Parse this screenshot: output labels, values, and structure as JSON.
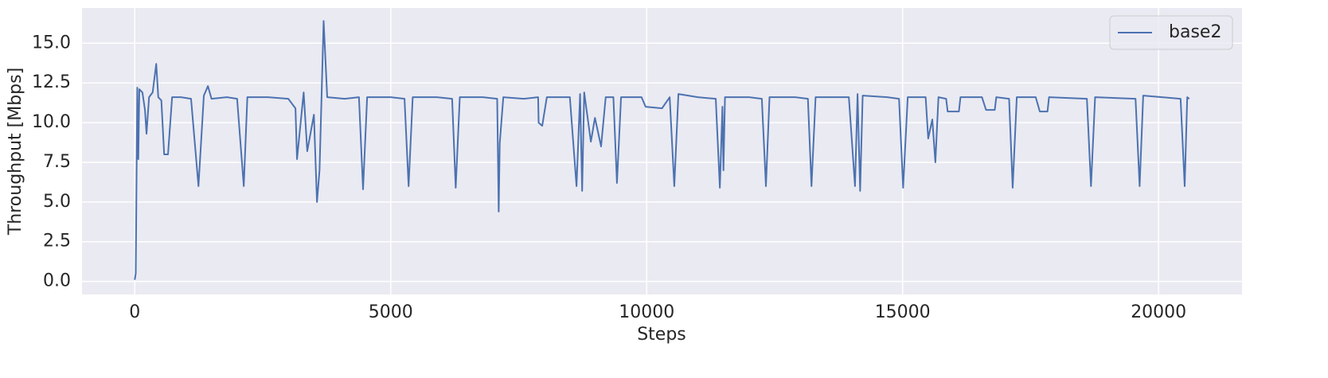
{
  "chart_data": {
    "type": "line",
    "xlabel": "Steps",
    "ylabel": "Throughput [Mbps]",
    "x": [
      0,
      20,
      50,
      70,
      90,
      150,
      200,
      230,
      280,
      350,
      420,
      460,
      520,
      575,
      650,
      730,
      900,
      1100,
      1245,
      1350,
      1430,
      1500,
      1800,
      2000,
      2130,
      2200,
      2600,
      3000,
      3140,
      3170,
      3300,
      3370,
      3500,
      3560,
      3610,
      3690,
      3760,
      4100,
      4380,
      4460,
      4540,
      5000,
      5270,
      5350,
      5430,
      5900,
      6200,
      6270,
      6350,
      6800,
      7080,
      7110,
      7130,
      7200,
      7600,
      7880,
      7890,
      7960,
      8050,
      8500,
      8630,
      8700,
      8740,
      8780,
      8910,
      8990,
      9110,
      9200,
      9350,
      9420,
      9500,
      9900,
      9980,
      10300,
      10450,
      10540,
      10620,
      11000,
      11350,
      11430,
      11480,
      11500,
      11530,
      12000,
      12250,
      12330,
      12400,
      12900,
      13150,
      13220,
      13300,
      13950,
      14070,
      14120,
      14170,
      14220,
      14700,
      14930,
      15010,
      15100,
      15450,
      15500,
      15580,
      15640,
      15700,
      15850,
      15880,
      16100,
      16130,
      16550,
      16630,
      16800,
      16830,
      17080,
      17150,
      17230,
      17600,
      17680,
      17830,
      17860,
      18600,
      18680,
      18760,
      19550,
      19630,
      19700,
      20430,
      20510,
      20560,
      20600
    ],
    "series": [
      {
        "name": "base2",
        "color": "#4c72b0",
        "values": [
          0.1,
          0.5,
          12.2,
          7.7,
          12.1,
          11.9,
          10.8,
          9.3,
          11.6,
          11.9,
          13.7,
          11.6,
          11.4,
          8.0,
          8.0,
          11.6,
          11.6,
          11.5,
          6.0,
          11.7,
          12.3,
          11.5,
          11.6,
          11.5,
          6.0,
          11.6,
          11.6,
          11.5,
          10.9,
          7.7,
          11.9,
          8.2,
          10.5,
          5.0,
          7.0,
          16.4,
          11.6,
          11.5,
          11.6,
          5.8,
          11.6,
          11.6,
          11.5,
          6.0,
          11.6,
          11.6,
          11.5,
          5.9,
          11.6,
          11.6,
          11.5,
          4.4,
          8.7,
          11.6,
          11.5,
          11.6,
          10.0,
          9.8,
          11.6,
          11.6,
          6.0,
          11.8,
          5.7,
          11.9,
          8.8,
          10.3,
          8.5,
          11.6,
          11.6,
          6.2,
          11.6,
          11.6,
          11.0,
          10.9,
          11.6,
          6.0,
          11.8,
          11.6,
          11.5,
          5.9,
          11.0,
          7.0,
          11.6,
          11.6,
          11.5,
          6.0,
          11.6,
          11.6,
          11.5,
          6.0,
          11.6,
          11.6,
          6.0,
          11.8,
          5.7,
          11.7,
          11.6,
          11.5,
          5.9,
          11.6,
          11.6,
          9.0,
          10.2,
          7.5,
          11.6,
          11.5,
          10.7,
          10.7,
          11.6,
          11.6,
          10.8,
          10.8,
          11.6,
          11.5,
          5.9,
          11.6,
          11.6,
          10.7,
          10.7,
          11.6,
          11.5,
          6.0,
          11.6,
          11.5,
          6.0,
          11.7,
          11.5,
          6.0,
          11.6,
          11.5
        ]
      }
    ],
    "xlim": [
      -1030,
      21630
    ],
    "ylim": [
      -0.82,
      17.22
    ],
    "xticks": [
      0,
      5000,
      10000,
      15000,
      20000
    ],
    "yticks": [
      {
        "value": 0,
        "label": "0.0"
      },
      2.5,
      {
        "value": 5,
        "label": "5.0"
      },
      7.5,
      {
        "value": 10,
        "label": "10.0"
      },
      12.5,
      {
        "value": 15,
        "label": "15.0"
      }
    ],
    "grid": true,
    "legend": "upper right"
  }
}
